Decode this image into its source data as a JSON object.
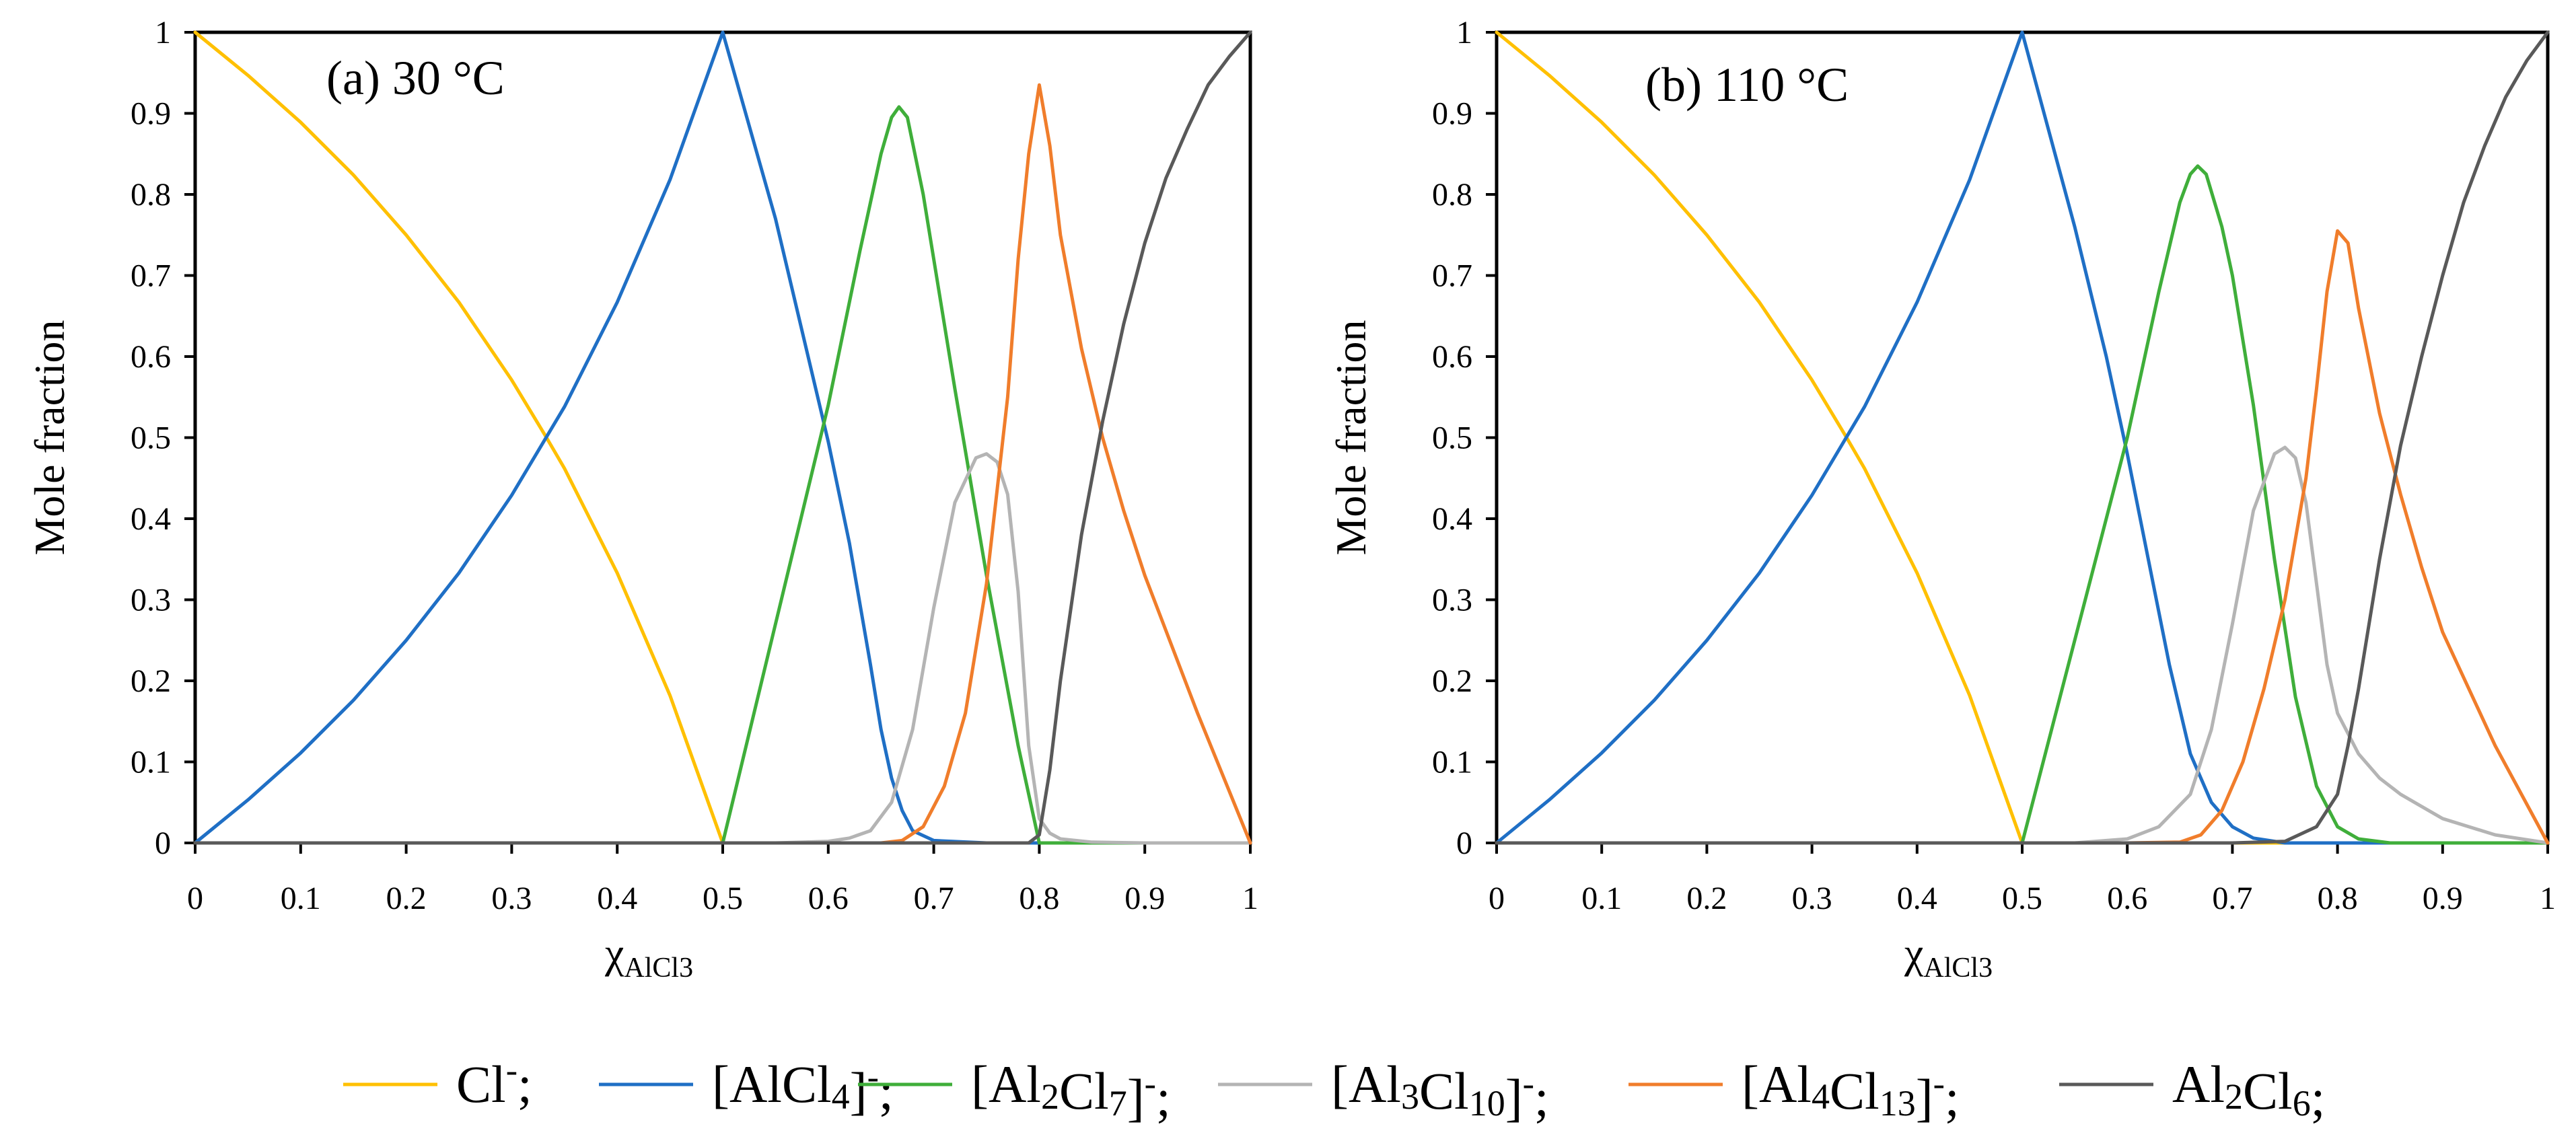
{
  "chart_data": [
    {
      "type": "line",
      "title": "(a) 30 °C",
      "xlabel": "χ",
      "xlabel_sub": "AlCl3",
      "ylabel": "Mole fraction",
      "xlim": [
        0,
        1
      ],
      "ylim": [
        0,
        1
      ],
      "xticks": [
        "0",
        "0.1",
        "0.2",
        "0.3",
        "0.4",
        "0.5",
        "0.6",
        "0.7",
        "0.8",
        "0.9",
        "1"
      ],
      "yticks": [
        "0",
        "0.1",
        "0.2",
        "0.3",
        "0.4",
        "0.5",
        "0.6",
        "0.7",
        "0.8",
        "0.9",
        "1"
      ],
      "grid": false,
      "series": [
        {
          "name": "Cl-",
          "color": "#FFC000",
          "x": [
            0,
            0.05,
            0.1,
            0.15,
            0.2,
            0.25,
            0.3,
            0.333,
            0.35,
            0.4,
            0.45,
            0.5,
            0.55,
            0.6,
            0.65,
            0.7,
            0.75,
            0.8,
            0.85,
            0.9,
            0.95,
            1.0
          ],
          "y": [
            1,
            0.947,
            0.889,
            0.824,
            0.75,
            0.667,
            0.571,
            0.5,
            0.462,
            0.333,
            0.182,
            0,
            0,
            0,
            0,
            0,
            0,
            0,
            0,
            0,
            0,
            0
          ]
        },
        {
          "name": "[AlCl4]-",
          "color": "#1F6FC5",
          "x": [
            0,
            0.05,
            0.1,
            0.15,
            0.2,
            0.25,
            0.3,
            0.35,
            0.4,
            0.45,
            0.5,
            0.55,
            0.6,
            0.62,
            0.64,
            0.65,
            0.66,
            0.67,
            0.68,
            0.7,
            0.75,
            0.8,
            0.85,
            0.9,
            0.95,
            1.0
          ],
          "y": [
            0,
            0.053,
            0.111,
            0.176,
            0.25,
            0.333,
            0.429,
            0.538,
            0.667,
            0.818,
            1.0,
            0.77,
            0.495,
            0.37,
            0.22,
            0.14,
            0.08,
            0.04,
            0.015,
            0.003,
            0,
            0,
            0,
            0,
            0,
            0
          ]
        },
        {
          "name": "[Al2Cl7]-",
          "color": "#3FAE3A",
          "x": [
            0,
            0.1,
            0.2,
            0.3,
            0.4,
            0.45,
            0.5,
            0.55,
            0.6,
            0.63,
            0.65,
            0.66,
            0.667,
            0.675,
            0.69,
            0.7,
            0.72,
            0.75,
            0.78,
            0.8,
            0.85,
            0.9,
            0.95,
            1.0
          ],
          "y": [
            0,
            0,
            0,
            0,
            0,
            0,
            0,
            0.27,
            0.54,
            0.73,
            0.85,
            0.895,
            0.908,
            0.895,
            0.8,
            0.72,
            0.56,
            0.33,
            0.12,
            0,
            0,
            0,
            0,
            0
          ]
        },
        {
          "name": "[Al3Cl10]-",
          "color": "#B4B4B4",
          "x": [
            0,
            0.1,
            0.2,
            0.3,
            0.4,
            0.5,
            0.55,
            0.6,
            0.62,
            0.64,
            0.66,
            0.68,
            0.7,
            0.72,
            0.74,
            0.75,
            0.76,
            0.77,
            0.78,
            0.79,
            0.8,
            0.81,
            0.82,
            0.85,
            0.9,
            0.95,
            1.0
          ],
          "y": [
            0,
            0,
            0,
            0,
            0,
            0,
            0,
            0.002,
            0.006,
            0.015,
            0.05,
            0.14,
            0.29,
            0.42,
            0.475,
            0.48,
            0.47,
            0.43,
            0.31,
            0.12,
            0.03,
            0.012,
            0.005,
            0.001,
            0,
            0,
            0
          ]
        },
        {
          "name": "[Al4Cl13]-",
          "color": "#F07D2B",
          "x": [
            0,
            0.1,
            0.2,
            0.3,
            0.4,
            0.5,
            0.6,
            0.65,
            0.67,
            0.69,
            0.71,
            0.73,
            0.75,
            0.77,
            0.78,
            0.79,
            0.8,
            0.81,
            0.82,
            0.84,
            0.86,
            0.88,
            0.9,
            0.95,
            1.0
          ],
          "y": [
            0,
            0,
            0,
            0,
            0,
            0,
            0,
            0,
            0.003,
            0.02,
            0.07,
            0.16,
            0.32,
            0.55,
            0.72,
            0.85,
            0.935,
            0.86,
            0.75,
            0.61,
            0.5,
            0.41,
            0.33,
            0.16,
            0
          ]
        },
        {
          "name": "Al2Cl6",
          "color": "#595959",
          "x": [
            0,
            0.1,
            0.2,
            0.3,
            0.4,
            0.5,
            0.6,
            0.7,
            0.75,
            0.79,
            0.8,
            0.81,
            0.82,
            0.84,
            0.86,
            0.88,
            0.9,
            0.92,
            0.94,
            0.96,
            0.98,
            1.0
          ],
          "y": [
            0,
            0,
            0,
            0,
            0,
            0,
            0,
            0,
            0,
            0,
            0.01,
            0.09,
            0.2,
            0.38,
            0.52,
            0.64,
            0.74,
            0.82,
            0.88,
            0.935,
            0.97,
            1.0
          ]
        }
      ]
    },
    {
      "type": "line",
      "title": "(b) 110 °C",
      "xlabel": "χ",
      "xlabel_sub": "AlCl3",
      "ylabel": "Mole fraction",
      "xlim": [
        0,
        1
      ],
      "ylim": [
        0,
        1
      ],
      "xticks": [
        "0",
        "0.1",
        "0.2",
        "0.3",
        "0.4",
        "0.5",
        "0.6",
        "0.7",
        "0.8",
        "0.9",
        "1"
      ],
      "yticks": [
        "0",
        "0.1",
        "0.2",
        "0.3",
        "0.4",
        "0.5",
        "0.6",
        "0.7",
        "0.8",
        "0.9",
        "1"
      ],
      "grid": false,
      "series": [
        {
          "name": "Cl-",
          "color": "#FFC000",
          "x": [
            0,
            0.05,
            0.1,
            0.15,
            0.2,
            0.25,
            0.3,
            0.333,
            0.35,
            0.4,
            0.45,
            0.5,
            0.55,
            0.6,
            0.65,
            0.7,
            0.75,
            0.8,
            0.85,
            0.9,
            0.95,
            1.0
          ],
          "y": [
            1,
            0.947,
            0.889,
            0.824,
            0.75,
            0.667,
            0.571,
            0.5,
            0.462,
            0.333,
            0.182,
            0,
            0,
            0,
            0,
            0,
            0,
            0,
            0,
            0,
            0,
            0
          ]
        },
        {
          "name": "[AlCl4]-",
          "color": "#1F6FC5",
          "x": [
            0,
            0.05,
            0.1,
            0.15,
            0.2,
            0.25,
            0.3,
            0.35,
            0.4,
            0.45,
            0.5,
            0.55,
            0.58,
            0.6,
            0.62,
            0.64,
            0.66,
            0.68,
            0.7,
            0.72,
            0.75,
            0.8,
            0.85,
            0.9,
            0.95,
            1.0
          ],
          "y": [
            0,
            0.053,
            0.111,
            0.176,
            0.25,
            0.333,
            0.429,
            0.538,
            0.667,
            0.818,
            1.0,
            0.76,
            0.6,
            0.48,
            0.35,
            0.22,
            0.11,
            0.05,
            0.02,
            0.006,
            0,
            0,
            0,
            0,
            0,
            0
          ]
        },
        {
          "name": "[Al2Cl7]-",
          "color": "#3FAE3A",
          "x": [
            0,
            0.1,
            0.2,
            0.3,
            0.4,
            0.45,
            0.5,
            0.55,
            0.6,
            0.63,
            0.65,
            0.66,
            0.667,
            0.675,
            0.69,
            0.7,
            0.72,
            0.74,
            0.76,
            0.78,
            0.8,
            0.82,
            0.85,
            0.9,
            0.95,
            1.0
          ],
          "y": [
            0,
            0,
            0,
            0,
            0,
            0,
            0,
            0.25,
            0.5,
            0.68,
            0.79,
            0.825,
            0.835,
            0.825,
            0.76,
            0.7,
            0.54,
            0.35,
            0.18,
            0.07,
            0.02,
            0.005,
            0,
            0,
            0,
            0
          ]
        },
        {
          "name": "[Al3Cl10]-",
          "color": "#B4B4B4",
          "x": [
            0,
            0.1,
            0.2,
            0.3,
            0.4,
            0.5,
            0.55,
            0.6,
            0.63,
            0.66,
            0.68,
            0.7,
            0.72,
            0.74,
            0.75,
            0.76,
            0.77,
            0.78,
            0.79,
            0.8,
            0.82,
            0.84,
            0.86,
            0.88,
            0.9,
            0.95,
            1.0
          ],
          "y": [
            0,
            0,
            0,
            0,
            0,
            0,
            0,
            0.005,
            0.02,
            0.06,
            0.14,
            0.27,
            0.41,
            0.48,
            0.488,
            0.475,
            0.42,
            0.32,
            0.22,
            0.16,
            0.11,
            0.08,
            0.06,
            0.045,
            0.03,
            0.01,
            0
          ]
        },
        {
          "name": "[Al4Cl13]-",
          "color": "#F07D2B",
          "x": [
            0,
            0.1,
            0.2,
            0.3,
            0.4,
            0.5,
            0.6,
            0.65,
            0.67,
            0.69,
            0.71,
            0.73,
            0.75,
            0.77,
            0.78,
            0.79,
            0.8,
            0.81,
            0.82,
            0.84,
            0.86,
            0.88,
            0.9,
            0.95,
            1.0
          ],
          "y": [
            0,
            0,
            0,
            0,
            0,
            0,
            0,
            0.001,
            0.01,
            0.04,
            0.1,
            0.19,
            0.3,
            0.45,
            0.56,
            0.68,
            0.755,
            0.74,
            0.66,
            0.53,
            0.43,
            0.34,
            0.26,
            0.12,
            0
          ]
        },
        {
          "name": "Al2Cl6",
          "color": "#595959",
          "x": [
            0,
            0.1,
            0.2,
            0.3,
            0.4,
            0.5,
            0.6,
            0.7,
            0.75,
            0.78,
            0.8,
            0.81,
            0.82,
            0.84,
            0.86,
            0.88,
            0.9,
            0.92,
            0.94,
            0.96,
            0.98,
            1.0
          ],
          "y": [
            0,
            0,
            0,
            0,
            0,
            0,
            0,
            0,
            0.002,
            0.02,
            0.06,
            0.12,
            0.19,
            0.35,
            0.49,
            0.6,
            0.7,
            0.79,
            0.86,
            0.92,
            0.965,
            1.0
          ]
        }
      ]
    }
  ],
  "legend": {
    "items": [
      {
        "color": "#FFC000",
        "base": "Cl",
        "sup": "-",
        "tail": ";"
      },
      {
        "color": "#1F6FC5",
        "base": "[AlCl4]",
        "sup": "-",
        "tail": ";"
      },
      {
        "color": "#3FAE3A",
        "base": "[Al2Cl7]",
        "sup": "-",
        "tail": ";"
      },
      {
        "color": "#B4B4B4",
        "base": "[Al3Cl10]",
        "sup": "-",
        "tail": ";"
      },
      {
        "color": "#F07D2B",
        "base": "[Al4Cl13]",
        "sup": "-",
        "tail": ";"
      },
      {
        "color": "#595959",
        "base": "Al2Cl6",
        "sup": "",
        "tail": ";"
      }
    ]
  }
}
